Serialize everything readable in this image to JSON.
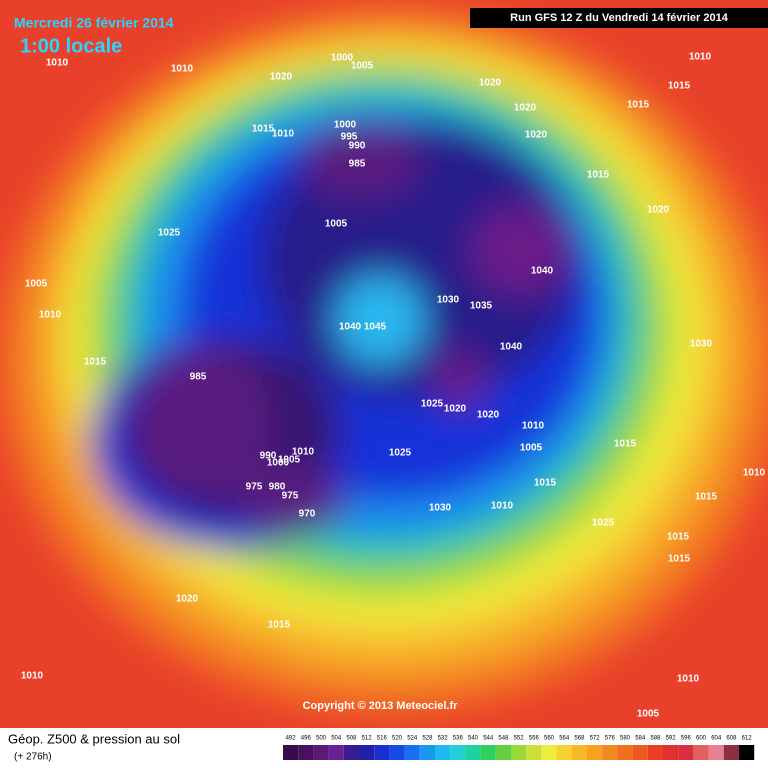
{
  "header": {
    "date": "Mercredi 26 février 2014",
    "time": "1:00 locale",
    "run": "Run GFS 12 Z du Vendredi 14 février 2014"
  },
  "copyright": "Copyright © 2013 Meteociel.fr",
  "footer": {
    "title": "Géop. Z500 & pression au sol",
    "lead": "(+ 276h)"
  },
  "scale_labels": [
    492,
    496,
    500,
    504,
    508,
    512,
    516,
    520,
    524,
    528,
    532,
    536,
    540,
    544,
    548,
    552,
    556,
    560,
    564,
    568,
    572,
    576,
    580,
    584,
    588,
    592,
    596,
    600,
    604,
    608,
    612
  ],
  "isobar_labels": [
    "1010",
    "1010",
    "1020",
    "1000",
    "1005",
    "1020",
    "1020",
    "1015",
    "1010",
    "1015",
    "1015",
    "1010",
    "1000",
    "995",
    "990",
    "985",
    "1020",
    "1015",
    "1020",
    "1025",
    "1005",
    "1040",
    "1030",
    "1035",
    "1005",
    "1010",
    "1040",
    "1030",
    "1015",
    "1040",
    "1045",
    "985",
    "1025",
    "1020",
    "1020",
    "1010",
    "1005",
    "1015",
    "1025",
    "1010",
    "990",
    "1000",
    "1005",
    "975",
    "980",
    "975",
    "970",
    "1015",
    "1010",
    "1015",
    "1030",
    "1010",
    "1025",
    "1015",
    "1015",
    "1020",
    "1015",
    "1010",
    "1010",
    "1005"
  ]
}
